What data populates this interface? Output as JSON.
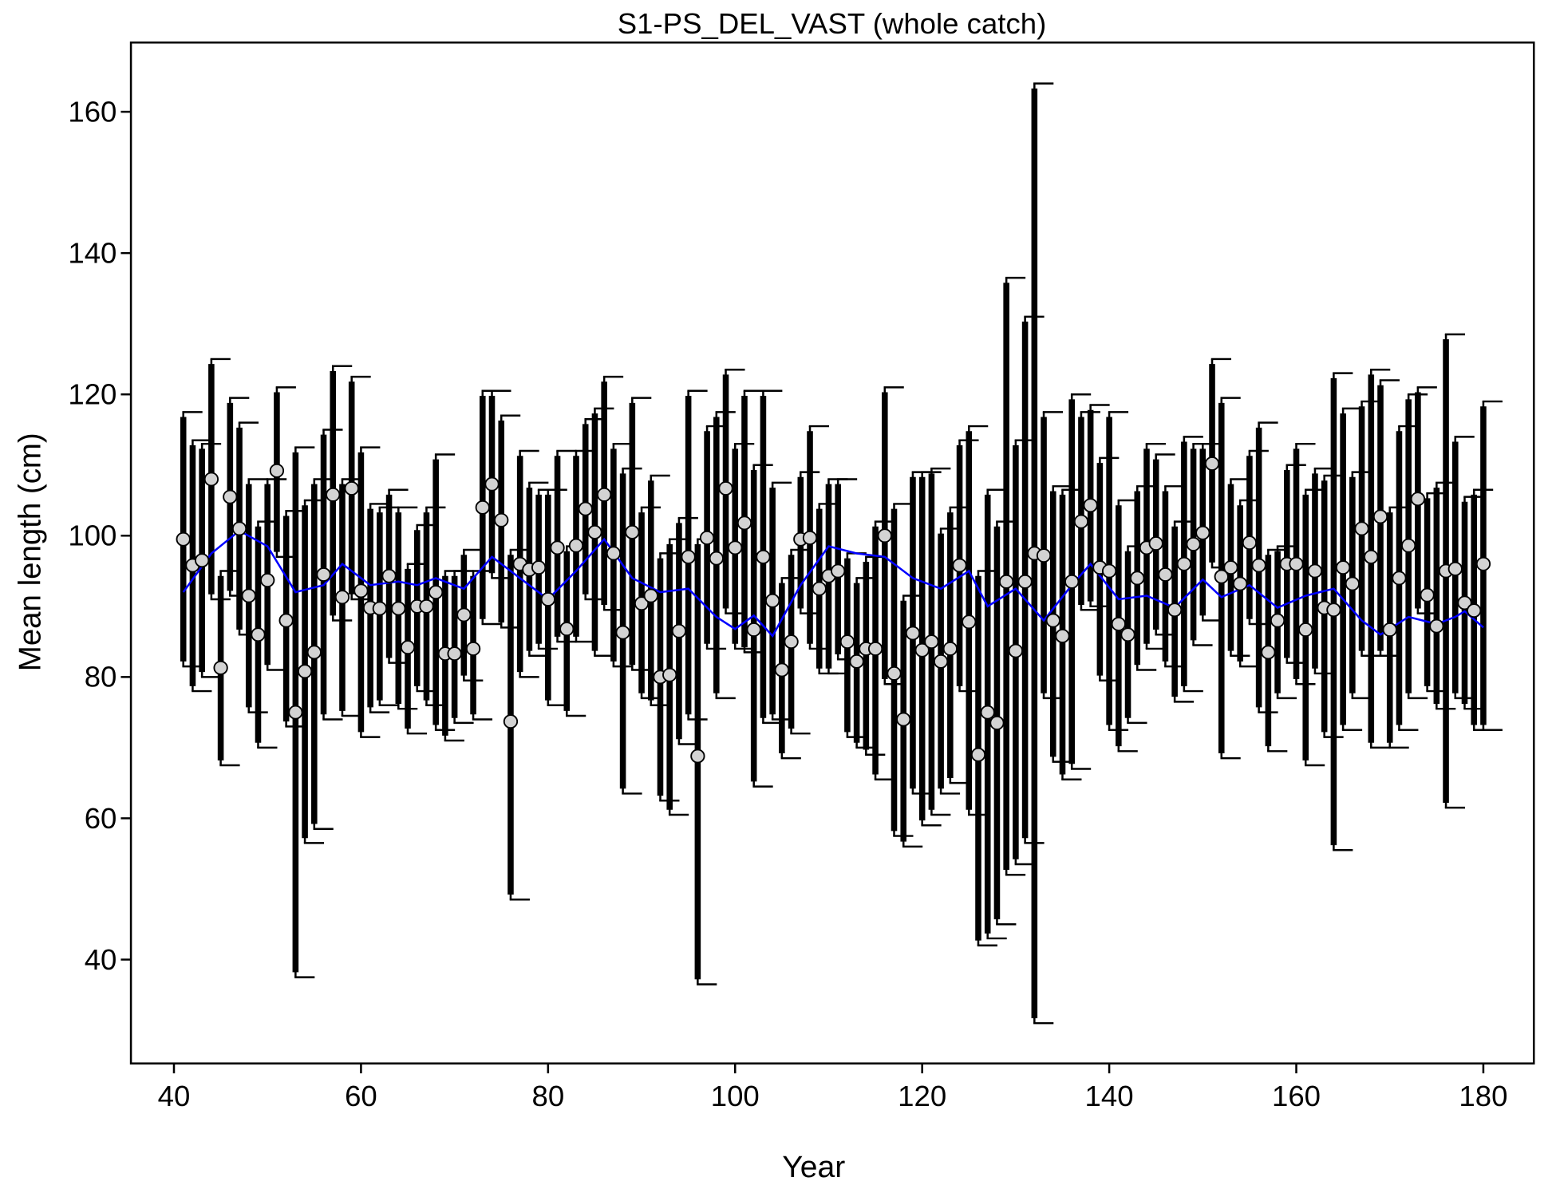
{
  "chart_data": {
    "type": "errorbar",
    "title": "S1-PS_DEL_VAST (whole catch)",
    "xlabel": "Year",
    "ylabel": "Mean length (cm)",
    "xlim": [
      35.4,
      185.4
    ],
    "ylim": [
      25.3,
      169.8
    ],
    "xticks": [
      40,
      60,
      80,
      100,
      120,
      140,
      160,
      180
    ],
    "yticks": [
      40,
      60,
      80,
      100,
      120,
      140,
      160
    ],
    "color": "#000000",
    "marker_color": "#d3d3d3",
    "x": [
      41,
      42,
      43,
      44,
      45,
      46,
      47,
      48,
      49,
      50,
      51,
      52,
      53,
      54,
      55,
      56,
      57,
      58,
      59,
      60,
      61,
      62,
      63,
      64,
      65,
      66,
      67,
      68,
      69,
      70,
      71,
      72,
      73,
      74,
      75,
      76,
      77,
      78,
      79,
      80,
      81,
      82,
      83,
      84,
      85,
      86,
      87,
      88,
      89,
      90,
      91,
      92,
      93,
      94,
      95,
      96,
      97,
      98,
      99,
      100,
      101,
      102,
      103,
      104,
      105,
      106,
      107,
      108,
      109,
      110,
      111,
      112,
      113,
      114,
      115,
      116,
      117,
      118,
      119,
      120,
      121,
      122,
      123,
      124,
      125,
      126,
      127,
      128,
      129,
      130,
      131,
      132,
      133,
      134,
      135,
      136,
      137,
      138,
      139,
      140,
      141,
      142,
      143,
      144,
      145,
      146,
      147,
      148,
      149,
      150,
      151,
      152,
      153,
      154,
      155,
      156,
      157,
      158,
      159,
      160,
      161,
      162,
      163,
      164,
      165,
      166,
      167,
      168,
      169,
      170,
      171,
      172,
      173,
      174,
      175,
      176,
      177,
      178,
      179,
      180
    ],
    "values": [
      99.5,
      95.8,
      96.5,
      108,
      81.3,
      105.5,
      101,
      91.5,
      86,
      93.7,
      109.2,
      88,
      75,
      80.8,
      83.5,
      94.5,
      105.8,
      91.3,
      106.7,
      92.2,
      89.8,
      89.7,
      94.3,
      89.7,
      84.2,
      90,
      90,
      92,
      83.3,
      83.3,
      88.8,
      84,
      104,
      107.3,
      102.2,
      73.7,
      96,
      95.2,
      95.5,
      91,
      98.3,
      86.8,
      98.6,
      103.8,
      100.5,
      105.8,
      97.5,
      86.3,
      100.5,
      90.4,
      91.5,
      80,
      80.3,
      86.5,
      97,
      68.8,
      99.7,
      96.8,
      106.7,
      98.3,
      101.8,
      86.7,
      97,
      90.8,
      81,
      85,
      99.5,
      99.7,
      92.5,
      94.3,
      95,
      85,
      82.2,
      84,
      84,
      100,
      80.5,
      74,
      86.2,
      83.8,
      85,
      82.2,
      84,
      95.8,
      87.8,
      69,
      75,
      73.5,
      93.5,
      83.7,
      93.5,
      97.5,
      97.2,
      88,
      85.8,
      93.5,
      102,
      104.3,
      95.5,
      95,
      87.5,
      86,
      94,
      98.3,
      98.9,
      94.5,
      89.5,
      96,
      98.8,
      100.4,
      110.2,
      94.2,
      95.5,
      93.2,
      99,
      95.8,
      83.5,
      88,
      96,
      96,
      86.7,
      95,
      89.8,
      89.5,
      95.5,
      93.2,
      101,
      97,
      102.7,
      86.7,
      94,
      98.6,
      105.2,
      91.6,
      87.2,
      95,
      95.3,
      90.5,
      89.4,
      96
    ],
    "lower": [
      81.5,
      78,
      80,
      91,
      67.5,
      91.5,
      86,
      75,
      70,
      81,
      97,
      73,
      37.5,
      56.5,
      58.5,
      74,
      88,
      74.5,
      91,
      71.5,
      75,
      76,
      82,
      75.5,
      72,
      78,
      76,
      72.5,
      71,
      73.5,
      79.5,
      74,
      87.5,
      94,
      87,
      48.5,
      80,
      83,
      84,
      76,
      85,
      74.5,
      85,
      91,
      83,
      89.5,
      81.5,
      63.5,
      81,
      77,
      76,
      62.5,
      60.5,
      70.5,
      74,
      36.5,
      84,
      77,
      89,
      84,
      83.5,
      64.5,
      73.5,
      74,
      68.5,
      72,
      89,
      84,
      80.5,
      80.5,
      82.5,
      71.5,
      70,
      69,
      65.5,
      79,
      57.5,
      56,
      63.5,
      59,
      60.5,
      63.5,
      65,
      78,
      60.5,
      42,
      43,
      45,
      52,
      53.5,
      56.5,
      31,
      77,
      68,
      65.5,
      67,
      89.5,
      90,
      79.5,
      72.5,
      69.5,
      73.5,
      81,
      84,
      86,
      81.5,
      76.5,
      78,
      84.5,
      88,
      95.5,
      68.5,
      83,
      81.5,
      87.5,
      75,
      69.5,
      77,
      82,
      79,
      67.5,
      80.5,
      71.5,
      55.5,
      72.5,
      77,
      83,
      70,
      83,
      70,
      72.5,
      77,
      89,
      78,
      75.5,
      61.5,
      77,
      75.5,
      72.5,
      72.5
    ],
    "upper": [
      117.5,
      113.5,
      113,
      125,
      95,
      119.5,
      116,
      108,
      102,
      108,
      121,
      103.5,
      112.5,
      105,
      108,
      115,
      124,
      108,
      122.5,
      112.5,
      104.5,
      104,
      106.5,
      104,
      96,
      101.5,
      104,
      111.5,
      95,
      95,
      98,
      95,
      120.5,
      120.5,
      117,
      98,
      112,
      107.5,
      106.5,
      106.5,
      112,
      98.5,
      112,
      116.5,
      118,
      122.5,
      113,
      109.5,
      119.5,
      104,
      108.5,
      97.5,
      99.5,
      102.5,
      120.5,
      99.5,
      115.5,
      117.5,
      123.5,
      113,
      120.5,
      110,
      120.5,
      107.5,
      94,
      98,
      109,
      115.5,
      104.5,
      108,
      108,
      97.5,
      94,
      97,
      102,
      121,
      104.5,
      91.5,
      109,
      109,
      109.5,
      101,
      104,
      113.5,
      115.5,
      95,
      106.5,
      102,
      136.5,
      113.5,
      131,
      164,
      117.5,
      107,
      106.5,
      120,
      117.5,
      118.5,
      111,
      117.5,
      105,
      98.5,
      107,
      113,
      111.5,
      107,
      102,
      114,
      113,
      113,
      125,
      119.5,
      108,
      105,
      112,
      116,
      98,
      98.5,
      110,
      113,
      106.5,
      109.5,
      108.5,
      123,
      118,
      109,
      119,
      123.5,
      122,
      104,
      115.5,
      120,
      121,
      106,
      107.5,
      128.5,
      114,
      105.5,
      106.5,
      119
    ],
    "smooth": {
      "color": "#0000ff",
      "x": [
        41,
        44,
        47,
        50,
        53,
        56,
        58,
        61,
        64,
        66,
        68,
        71,
        74,
        77,
        80,
        83,
        86,
        89,
        92,
        95,
        98,
        100,
        102,
        104,
        107,
        110,
        113,
        116,
        119,
        122,
        125,
        127,
        130,
        133,
        136,
        138,
        141,
        144,
        147,
        150,
        152,
        155,
        158,
        161,
        164,
        167,
        169,
        172,
        175,
        177,
        178,
        180
      ],
      "values": [
        92,
        97.5,
        100.7,
        98.5,
        92,
        93,
        96,
        93,
        93.5,
        93,
        94,
        92.5,
        97,
        94,
        91,
        95,
        99.5,
        94,
        92,
        92.5,
        88.5,
        86.8,
        88.7,
        85.8,
        93,
        98.5,
        97.5,
        97,
        94,
        92.5,
        95,
        90,
        92.5,
        88,
        93,
        96,
        91,
        91.5,
        89.8,
        93.8,
        91.3,
        93,
        89.8,
        91.5,
        92.5,
        88,
        86,
        88.5,
        87.5,
        88.5,
        89.3,
        87
      ]
    }
  }
}
